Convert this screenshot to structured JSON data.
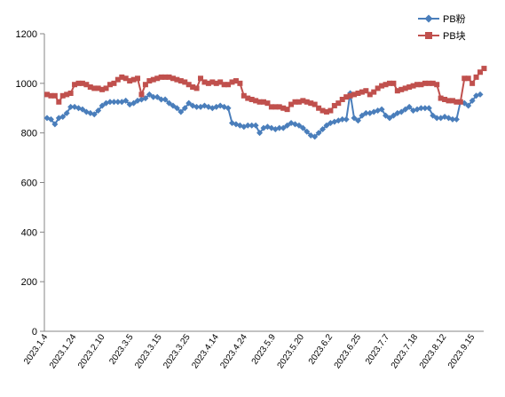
{
  "chart_data": {
    "type": "line",
    "ylim": [
      0,
      1200
    ],
    "y_ticks": [
      0,
      200,
      400,
      600,
      800,
      1000,
      1200
    ],
    "grid": false,
    "legend_position": "top-right",
    "x_tick_labels": [
      "2023.1.4",
      "2023.1.24",
      "2023.2.10",
      "2023.3.5",
      "2023.3.15",
      "2023.3.25",
      "2023.4.14",
      "2023.4.24",
      "2023.5.9",
      "2023.5.20",
      "2023.6.2",
      "2023.6.25",
      "2023.7.7",
      "2023.7.18",
      "2023.8.12",
      "2023.9.15"
    ],
    "series": [
      {
        "name": "PB粉",
        "color": "#4a7ebb",
        "marker": "diamond",
        "values": [
          860,
          855,
          835,
          860,
          865,
          880,
          905,
          905,
          900,
          895,
          885,
          880,
          875,
          890,
          910,
          920,
          925,
          925,
          925,
          925,
          930,
          915,
          920,
          930,
          935,
          940,
          955,
          945,
          945,
          935,
          935,
          920,
          910,
          900,
          885,
          900,
          920,
          910,
          905,
          905,
          910,
          905,
          900,
          905,
          910,
          905,
          900,
          840,
          835,
          830,
          825,
          830,
          830,
          830,
          800,
          820,
          825,
          820,
          815,
          820,
          820,
          830,
          840,
          835,
          830,
          820,
          805,
          790,
          785,
          800,
          815,
          830,
          840,
          845,
          850,
          855,
          855,
          960,
          860,
          850,
          870,
          880,
          880,
          885,
          890,
          895,
          870,
          860,
          870,
          880,
          885,
          895,
          905,
          890,
          895,
          900,
          900,
          900,
          870,
          860,
          860,
          865,
          860,
          855,
          855,
          925,
          920,
          910,
          930,
          950,
          955
        ]
      },
      {
        "name": "PB块",
        "color": "#c0504d",
        "marker": "square",
        "values": [
          955,
          950,
          950,
          925,
          950,
          955,
          960,
          995,
          1000,
          1000,
          995,
          985,
          980,
          980,
          975,
          980,
          995,
          1000,
          1015,
          1025,
          1020,
          1010,
          1015,
          1020,
          955,
          995,
          1010,
          1015,
          1020,
          1025,
          1025,
          1025,
          1020,
          1015,
          1010,
          1005,
          995,
          985,
          980,
          1020,
          1005,
          1000,
          1005,
          1000,
          1005,
          995,
          995,
          1005,
          1010,
          1000,
          950,
          940,
          935,
          930,
          925,
          925,
          920,
          905,
          905,
          905,
          900,
          895,
          915,
          925,
          925,
          930,
          925,
          920,
          915,
          900,
          890,
          885,
          890,
          910,
          920,
          935,
          945,
          950,
          955,
          960,
          965,
          970,
          955,
          965,
          980,
          990,
          995,
          1000,
          1000,
          970,
          975,
          980,
          985,
          990,
          995,
          995,
          1000,
          1000,
          1000,
          995,
          940,
          935,
          930,
          930,
          925,
          925,
          1020,
          1020,
          1000,
          1025,
          1045,
          1060
        ]
      }
    ]
  }
}
